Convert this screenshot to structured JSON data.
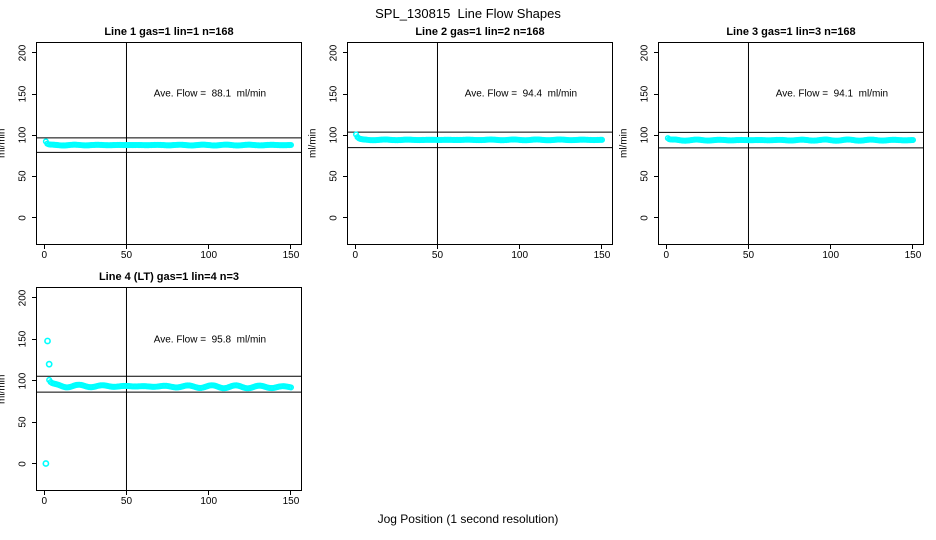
{
  "figure": {
    "title": "SPL_130815  Line Flow Shapes",
    "xlabel": "Jog Position (1 second resolution)",
    "colors": {
      "points": "#00ffff",
      "axis": "#000000",
      "background": "#ffffff"
    }
  },
  "chart_data": [
    {
      "type": "scatter",
      "title": "Line 1 gas=1 lin=1 n=168",
      "ylabel": "ml/min",
      "annotation": "Ave. Flow =  88.1  ml/min",
      "ave_flow": 88.1,
      "n": 168,
      "x_ticks": [
        0,
        50,
        100,
        150
      ],
      "y_ticks": [
        200,
        150,
        100,
        50,
        0
      ],
      "xlim": [
        -4.4,
        156.1
      ],
      "ylim": [
        -32,
        212
      ],
      "vline_x": 50,
      "ref_lines": [
        96.9,
        79.3
      ],
      "grid": false,
      "series": {
        "band": {
          "x_start": 1,
          "x_end": 150,
          "start_value": 92.5,
          "settle_value": 88.1,
          "decay": 0.8,
          "noise": 0.5,
          "drift": 0,
          "points": 168
        },
        "outliers": []
      }
    },
    {
      "type": "scatter",
      "title": "Line 2 gas=1 lin=2 n=168",
      "ylabel": "ml/min",
      "annotation": "Ave. Flow =  94.4  ml/min",
      "ave_flow": 94.4,
      "n": 168,
      "x_ticks": [
        0,
        50,
        100,
        150
      ],
      "y_ticks": [
        200,
        150,
        100,
        50,
        0
      ],
      "xlim": [
        -4.4,
        156.1
      ],
      "ylim": [
        -32,
        212
      ],
      "vline_x": 50,
      "ref_lines": [
        103.8,
        85.0
      ],
      "grid": false,
      "series": {
        "band": {
          "x_start": 0.5,
          "x_end": 150,
          "start_value": 101,
          "settle_value": 94.4,
          "decay": 1.2,
          "noise": 0.45,
          "drift": 0,
          "points": 168
        },
        "outliers": []
      }
    },
    {
      "type": "scatter",
      "title": "Line 3 gas=1 lin=3 n=168",
      "ylabel": "ml/min",
      "annotation": "Ave. Flow =  94.1  ml/min",
      "ave_flow": 94.1,
      "n": 168,
      "x_ticks": [
        0,
        50,
        100,
        150
      ],
      "y_ticks": [
        200,
        150,
        100,
        50,
        0
      ],
      "xlim": [
        -4.4,
        156.1
      ],
      "ylim": [
        -32,
        212
      ],
      "vline_x": 50,
      "ref_lines": [
        103.5,
        84.7
      ],
      "grid": false,
      "series": {
        "band": {
          "x_start": 1,
          "x_end": 150,
          "start_value": 96.5,
          "settle_value": 94.1,
          "decay": 0.8,
          "noise": 0.7,
          "drift": 0,
          "points": 168
        },
        "outliers": []
      }
    },
    {
      "type": "scatter",
      "title": "Line 4 (LT) gas=1 lin=4 n=3",
      "ylabel": "ml/min",
      "annotation": "Ave. Flow =  95.8  ml/min",
      "ave_flow": 95.8,
      "n": 3,
      "x_ticks": [
        0,
        50,
        100,
        150
      ],
      "y_ticks": [
        200,
        150,
        100,
        50,
        0
      ],
      "xlim": [
        -4.4,
        156.1
      ],
      "ylim": [
        -32,
        212
      ],
      "vline_x": 50,
      "ref_lines": [
        105.4,
        86.2
      ],
      "grid": false,
      "series": {
        "band": {
          "x_start": 3,
          "x_end": 150,
          "start_value": 101,
          "settle_value": 93.8,
          "decay": 1.5,
          "noise": 1.8,
          "drift": -1.5,
          "points": 160
        },
        "outliers": [
          [
            2,
            148
          ],
          [
            3,
            120
          ],
          [
            1,
            0
          ]
        ]
      }
    }
  ]
}
